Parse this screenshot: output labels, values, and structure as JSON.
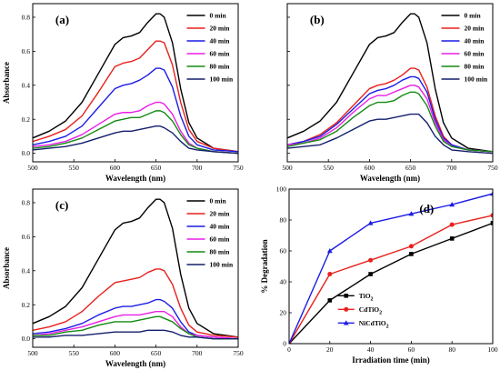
{
  "chart_data": [
    {
      "type": "line",
      "panel_label": "(a)",
      "xlabel": "Wavelength (nm)",
      "ylabel": "Absorbance",
      "xlim": [
        500,
        750
      ],
      "ylim": [
        -0.05,
        0.88
      ],
      "xticks": [
        500,
        550,
        600,
        650,
        700,
        750
      ],
      "yticks": [
        0.0,
        0.2,
        0.4,
        0.6,
        0.8
      ],
      "legend_position": "top-right",
      "series": [
        {
          "name": "0 min",
          "color": "#000000",
          "x": [
            500,
            520,
            540,
            560,
            580,
            600,
            610,
            620,
            630,
            640,
            650,
            655,
            660,
            670,
            680,
            690,
            700,
            720,
            750
          ],
          "y": [
            0.09,
            0.13,
            0.19,
            0.3,
            0.47,
            0.64,
            0.68,
            0.69,
            0.71,
            0.77,
            0.82,
            0.82,
            0.8,
            0.65,
            0.38,
            0.18,
            0.09,
            0.03,
            0.01
          ]
        },
        {
          "name": "20 min",
          "color": "#e8201c",
          "x": [
            500,
            520,
            540,
            560,
            580,
            600,
            610,
            620,
            630,
            640,
            650,
            655,
            660,
            670,
            680,
            690,
            700,
            720,
            750
          ],
          "y": [
            0.07,
            0.1,
            0.14,
            0.22,
            0.36,
            0.51,
            0.53,
            0.54,
            0.56,
            0.61,
            0.66,
            0.66,
            0.65,
            0.52,
            0.3,
            0.14,
            0.07,
            0.03,
            0.01
          ]
        },
        {
          "name": "40 min",
          "color": "#1c1ce6",
          "x": [
            500,
            520,
            540,
            560,
            580,
            600,
            610,
            620,
            630,
            640,
            650,
            655,
            660,
            670,
            680,
            690,
            700,
            720,
            750
          ],
          "y": [
            0.05,
            0.07,
            0.1,
            0.16,
            0.27,
            0.38,
            0.4,
            0.41,
            0.43,
            0.46,
            0.5,
            0.5,
            0.49,
            0.39,
            0.22,
            0.1,
            0.05,
            0.02,
            0.01
          ]
        },
        {
          "name": "60 min",
          "color": "#e91ee6",
          "x": [
            500,
            520,
            540,
            560,
            580,
            600,
            610,
            620,
            630,
            640,
            650,
            655,
            660,
            670,
            680,
            690,
            700,
            720,
            750
          ],
          "y": [
            0.04,
            0.05,
            0.07,
            0.11,
            0.17,
            0.23,
            0.24,
            0.24,
            0.25,
            0.28,
            0.3,
            0.3,
            0.29,
            0.23,
            0.13,
            0.06,
            0.03,
            0.01,
            0.0
          ]
        },
        {
          "name": "80 min",
          "color": "#138a13",
          "x": [
            500,
            520,
            540,
            560,
            580,
            600,
            610,
            620,
            630,
            640,
            650,
            655,
            660,
            670,
            680,
            690,
            700,
            720,
            750
          ],
          "y": [
            0.03,
            0.04,
            0.06,
            0.09,
            0.14,
            0.19,
            0.2,
            0.21,
            0.21,
            0.23,
            0.25,
            0.25,
            0.24,
            0.19,
            0.11,
            0.05,
            0.03,
            0.01,
            0.0
          ]
        },
        {
          "name": "100 min",
          "color": "#141e6b",
          "x": [
            500,
            520,
            540,
            560,
            580,
            600,
            610,
            620,
            630,
            640,
            650,
            655,
            660,
            670,
            680,
            690,
            700,
            720,
            750
          ],
          "y": [
            0.02,
            0.03,
            0.04,
            0.06,
            0.09,
            0.12,
            0.13,
            0.13,
            0.14,
            0.15,
            0.16,
            0.16,
            0.15,
            0.12,
            0.07,
            0.03,
            0.02,
            0.01,
            0.0
          ]
        }
      ]
    },
    {
      "type": "line",
      "panel_label": "(b)",
      "xlabel": "Wavelength (nm)",
      "ylabel": "",
      "xlim": [
        500,
        750
      ],
      "ylim": [
        -0.05,
        0.88
      ],
      "xticks": [
        500,
        550,
        600,
        650,
        700,
        750
      ],
      "legend_position": "top-right",
      "series": [
        {
          "name": "0 min",
          "color": "#000000",
          "x": [
            500,
            520,
            540,
            560,
            580,
            600,
            610,
            620,
            630,
            640,
            650,
            655,
            660,
            670,
            680,
            690,
            700,
            720,
            750
          ],
          "y": [
            0.09,
            0.13,
            0.19,
            0.3,
            0.47,
            0.64,
            0.68,
            0.69,
            0.71,
            0.77,
            0.82,
            0.82,
            0.8,
            0.65,
            0.38,
            0.18,
            0.09,
            0.03,
            0.01
          ]
        },
        {
          "name": "20 min",
          "color": "#e8201c",
          "x": [
            500,
            520,
            540,
            560,
            580,
            600,
            610,
            620,
            630,
            640,
            650,
            655,
            660,
            670,
            680,
            690,
            700,
            720,
            750
          ],
          "y": [
            0.05,
            0.07,
            0.11,
            0.18,
            0.28,
            0.38,
            0.4,
            0.41,
            0.43,
            0.46,
            0.5,
            0.5,
            0.49,
            0.39,
            0.22,
            0.1,
            0.05,
            0.02,
            0.01
          ]
        },
        {
          "name": "40 min",
          "color": "#1c1ce6",
          "x": [
            500,
            520,
            540,
            560,
            580,
            600,
            610,
            620,
            630,
            640,
            650,
            655,
            660,
            670,
            680,
            690,
            700,
            720,
            750
          ],
          "y": [
            0.05,
            0.07,
            0.1,
            0.17,
            0.26,
            0.35,
            0.37,
            0.38,
            0.4,
            0.43,
            0.45,
            0.45,
            0.44,
            0.36,
            0.2,
            0.09,
            0.05,
            0.02,
            0.01
          ]
        },
        {
          "name": "60 min",
          "color": "#e91ee6",
          "x": [
            500,
            520,
            540,
            560,
            580,
            600,
            610,
            620,
            630,
            640,
            650,
            655,
            660,
            670,
            680,
            690,
            700,
            720,
            750
          ],
          "y": [
            0.05,
            0.06,
            0.09,
            0.15,
            0.24,
            0.32,
            0.34,
            0.34,
            0.36,
            0.38,
            0.4,
            0.4,
            0.39,
            0.32,
            0.18,
            0.08,
            0.04,
            0.02,
            0.01
          ]
        },
        {
          "name": "80 min",
          "color": "#138a13",
          "x": [
            500,
            520,
            540,
            560,
            580,
            600,
            610,
            620,
            630,
            640,
            650,
            655,
            660,
            670,
            680,
            690,
            700,
            720,
            750
          ],
          "y": [
            0.04,
            0.06,
            0.08,
            0.13,
            0.21,
            0.28,
            0.3,
            0.3,
            0.31,
            0.34,
            0.36,
            0.36,
            0.35,
            0.28,
            0.16,
            0.07,
            0.04,
            0.02,
            0.01
          ]
        },
        {
          "name": "100 min",
          "color": "#141e6b",
          "x": [
            500,
            520,
            540,
            560,
            580,
            600,
            610,
            620,
            630,
            640,
            650,
            655,
            660,
            670,
            680,
            690,
            700,
            720,
            750
          ],
          "y": [
            0.03,
            0.04,
            0.05,
            0.09,
            0.14,
            0.19,
            0.2,
            0.2,
            0.21,
            0.22,
            0.23,
            0.23,
            0.23,
            0.18,
            0.1,
            0.05,
            0.02,
            0.01,
            0.0
          ]
        }
      ]
    },
    {
      "type": "line",
      "panel_label": "(c)",
      "xlabel": "Wavelength (nm)",
      "ylabel": "Absorbance",
      "xlim": [
        500,
        750
      ],
      "ylim": [
        -0.05,
        0.88
      ],
      "xticks": [
        500,
        550,
        600,
        650,
        700,
        750
      ],
      "yticks": [
        0.0,
        0.2,
        0.4,
        0.6,
        0.8
      ],
      "legend_position": "top-right",
      "series": [
        {
          "name": "0 min",
          "color": "#000000",
          "x": [
            500,
            520,
            540,
            560,
            580,
            600,
            610,
            620,
            630,
            640,
            650,
            655,
            660,
            670,
            680,
            690,
            700,
            720,
            750
          ],
          "y": [
            0.09,
            0.13,
            0.19,
            0.3,
            0.47,
            0.64,
            0.68,
            0.69,
            0.71,
            0.77,
            0.82,
            0.82,
            0.8,
            0.65,
            0.38,
            0.18,
            0.09,
            0.03,
            0.01
          ]
        },
        {
          "name": "20 min",
          "color": "#e8201c",
          "x": [
            500,
            520,
            540,
            560,
            580,
            600,
            610,
            620,
            630,
            640,
            650,
            655,
            660,
            670,
            680,
            690,
            700,
            720,
            750
          ],
          "y": [
            0.05,
            0.07,
            0.1,
            0.16,
            0.25,
            0.33,
            0.34,
            0.35,
            0.36,
            0.39,
            0.41,
            0.41,
            0.4,
            0.32,
            0.18,
            0.08,
            0.04,
            0.02,
            0.01
          ]
        },
        {
          "name": "40 min",
          "color": "#1c1ce6",
          "x": [
            500,
            520,
            540,
            560,
            580,
            600,
            610,
            620,
            630,
            640,
            650,
            655,
            660,
            670,
            680,
            690,
            700,
            720,
            750
          ],
          "y": [
            0.03,
            0.04,
            0.06,
            0.09,
            0.14,
            0.18,
            0.19,
            0.19,
            0.2,
            0.21,
            0.23,
            0.23,
            0.22,
            0.18,
            0.1,
            0.04,
            0.02,
            0.01,
            0.0
          ]
        },
        {
          "name": "60 min",
          "color": "#e91ee6",
          "x": [
            500,
            520,
            540,
            560,
            580,
            600,
            610,
            620,
            630,
            640,
            650,
            655,
            660,
            670,
            680,
            690,
            700,
            720,
            750
          ],
          "y": [
            0.02,
            0.03,
            0.05,
            0.07,
            0.1,
            0.13,
            0.14,
            0.14,
            0.14,
            0.15,
            0.16,
            0.16,
            0.16,
            0.13,
            0.07,
            0.03,
            0.02,
            0.01,
            0.0
          ]
        },
        {
          "name": "80 min",
          "color": "#138a13",
          "x": [
            500,
            520,
            540,
            560,
            580,
            600,
            610,
            620,
            630,
            640,
            650,
            655,
            660,
            670,
            680,
            690,
            700,
            720,
            750
          ],
          "y": [
            0.02,
            0.02,
            0.04,
            0.05,
            0.08,
            0.1,
            0.1,
            0.1,
            0.11,
            0.12,
            0.13,
            0.13,
            0.12,
            0.1,
            0.06,
            0.03,
            0.01,
            0.0,
            0.0
          ]
        },
        {
          "name": "100 min",
          "color": "#141e6b",
          "x": [
            500,
            520,
            540,
            560,
            580,
            600,
            610,
            620,
            630,
            640,
            650,
            655,
            660,
            670,
            680,
            690,
            700,
            720,
            750
          ],
          "y": [
            0.01,
            0.01,
            0.02,
            0.02,
            0.03,
            0.04,
            0.04,
            0.04,
            0.04,
            0.05,
            0.05,
            0.05,
            0.05,
            0.04,
            0.02,
            0.01,
            0.01,
            0.0,
            0.0
          ]
        }
      ]
    },
    {
      "type": "line",
      "panel_label": "(d)",
      "xlabel": "Irradiation time (min)",
      "ylabel": "% Degradation",
      "xlim": [
        0,
        100
      ],
      "ylim": [
        0,
        100
      ],
      "xticks": [
        0,
        20,
        40,
        60,
        80,
        100
      ],
      "yticks": [
        0,
        20,
        40,
        60,
        80,
        100
      ],
      "legend_position": "bottom-right",
      "series": [
        {
          "name": "TiO",
          "sub": "2",
          "color": "#000000",
          "marker": "square",
          "x": [
            0,
            20,
            40,
            60,
            80,
            100
          ],
          "y": [
            0,
            28,
            45,
            58,
            68,
            78
          ]
        },
        {
          "name": "CdTiO",
          "sub": "2",
          "color": "#e8201c",
          "marker": "circle",
          "x": [
            0,
            20,
            40,
            60,
            80,
            100
          ],
          "y": [
            0,
            45,
            54,
            63,
            77,
            83
          ]
        },
        {
          "name": "NiCdTiO",
          "sub": "2",
          "color": "#1c1ce6",
          "marker": "triangle",
          "x": [
            0,
            20,
            40,
            60,
            80,
            100
          ],
          "y": [
            0,
            60,
            78,
            84,
            90,
            97
          ]
        }
      ]
    }
  ]
}
